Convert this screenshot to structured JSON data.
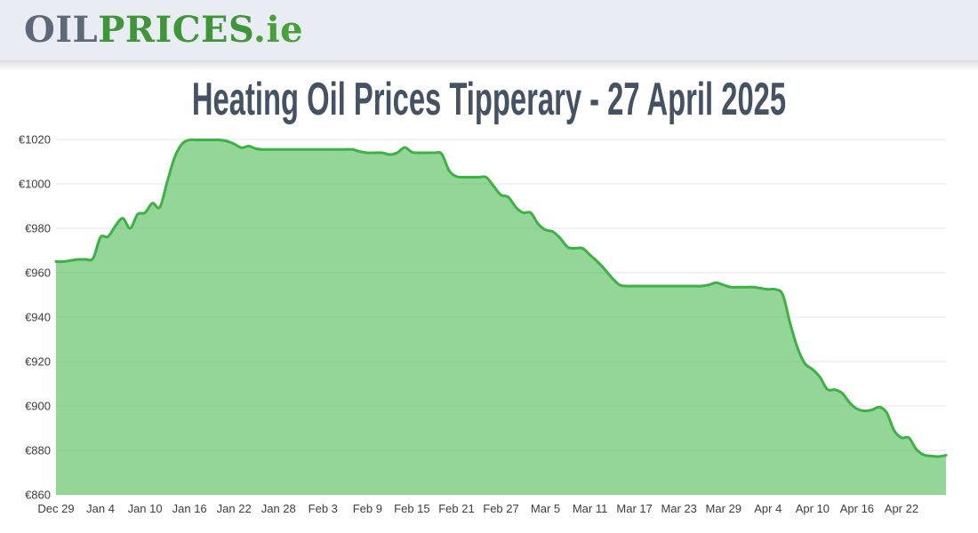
{
  "header": {
    "logo": {
      "part1": "OIL",
      "part2": "PRICES",
      "part3": ".ie"
    },
    "brand_colors": {
      "oil": "#5d6878",
      "prices": "#3e9639",
      "ie": "#47a039",
      "bar_background": "#e9ecf2"
    }
  },
  "title": {
    "text": "Heating Oil Prices Tipperary - 27 April 2025",
    "color": "#445264"
  },
  "chart_data": {
    "type": "area",
    "title": "Heating Oil Prices Tipperary - 27 April 2025",
    "currency_prefix": "€",
    "start_date": "Dec 29",
    "end_date": "Apr 27",
    "interval_days": 1,
    "ylim": [
      860,
      1020
    ],
    "y_ticks": [
      860,
      880,
      900,
      920,
      940,
      960,
      980,
      1000,
      1020
    ],
    "x_ticks": [
      {
        "label": "Dec 29",
        "day": 0
      },
      {
        "label": "Jan 4",
        "day": 6
      },
      {
        "label": "Jan 10",
        "day": 12
      },
      {
        "label": "Jan 16",
        "day": 18
      },
      {
        "label": "Jan 22",
        "day": 24
      },
      {
        "label": "Jan 28",
        "day": 30
      },
      {
        "label": "Feb 3",
        "day": 36
      },
      {
        "label": "Feb 9",
        "day": 42
      },
      {
        "label": "Feb 15",
        "day": 48
      },
      {
        "label": "Feb 21",
        "day": 54
      },
      {
        "label": "Feb 27",
        "day": 60
      },
      {
        "label": "Mar 5",
        "day": 66
      },
      {
        "label": "Mar 11",
        "day": 72
      },
      {
        "label": "Mar 17",
        "day": 78
      },
      {
        "label": "Mar 23",
        "day": 84
      },
      {
        "label": "Mar 29",
        "day": 90
      },
      {
        "label": "Apr 4",
        "day": 96
      },
      {
        "label": "Apr 10",
        "day": 102
      },
      {
        "label": "Apr 16",
        "day": 108
      },
      {
        "label": "Apr 22",
        "day": 114
      }
    ],
    "grid": "horizontal",
    "legend": "none",
    "line_color": "#3db244",
    "fill_color": "rgba(61,178,68,0.55)",
    "grid_color": "#e6e6e6",
    "axis_label_color": "#3c3c3c",
    "values": [
      965,
      965,
      965.5,
      966,
      966,
      966.5,
      976,
      976.2,
      981,
      984.5,
      980,
      986.3,
      987,
      991.3,
      989.5,
      1001,
      1012,
      1018,
      1019.8,
      1019.8,
      1019.8,
      1019.8,
      1019.8,
      1019.3,
      1018,
      1016.3,
      1017,
      1015.8,
      1015.5,
      1015.5,
      1015.5,
      1015.5,
      1015.5,
      1015.5,
      1015.5,
      1015.5,
      1015.5,
      1015.5,
      1015.5,
      1015.5,
      1015.5,
      1014.5,
      1014,
      1014,
      1014,
      1013.2,
      1014,
      1016.4,
      1014.3,
      1014,
      1014,
      1014,
      1013.5,
      1006,
      1003.3,
      1003,
      1003,
      1003,
      1003,
      999,
      995,
      994,
      989.5,
      987,
      987,
      982,
      979.3,
      978.5,
      975.5,
      971.5,
      971,
      971,
      968,
      965,
      961.5,
      957.5,
      954.5,
      954,
      954,
      954,
      954,
      954,
      954,
      954,
      954,
      954,
      954,
      954,
      954.5,
      955.5,
      954.5,
      953.5,
      953.5,
      953.5,
      953.5,
      953,
      952.5,
      952.5,
      950,
      937,
      926,
      919,
      916.5,
      913,
      907.5,
      907.3,
      905.8,
      901.5,
      898.7,
      897.8,
      898.2,
      899.5,
      897,
      889,
      885.7,
      885.7,
      880.5,
      878,
      877.5,
      877.2,
      877.8
    ]
  }
}
